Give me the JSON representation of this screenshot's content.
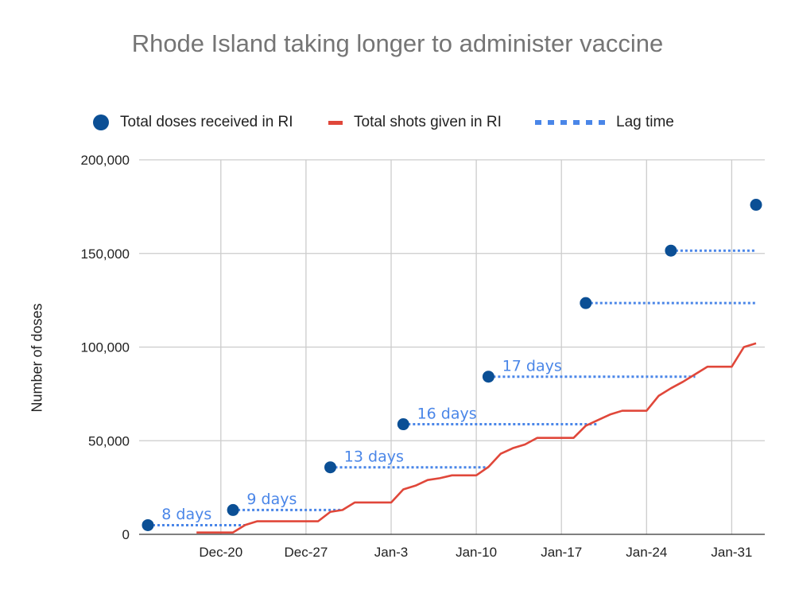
{
  "chart_data": {
    "type": "line",
    "title": "Rhode Island taking longer to administer vaccine",
    "xlabel": "",
    "ylabel": "Number of doses",
    "ylim": [
      0,
      200000
    ],
    "yticks": [
      0,
      50000,
      100000,
      150000,
      200000
    ],
    "ytick_labels": [
      "0",
      "50,000",
      "100,000",
      "150,000",
      "200,000"
    ],
    "xaxis_start_date": "2020-12-14",
    "xticks": [
      "2020-12-20",
      "2020-12-27",
      "2021-01-03",
      "2021-01-10",
      "2021-01-17",
      "2021-01-24",
      "2021-01-31"
    ],
    "xtick_labels": [
      "Dec-20",
      "Dec-27",
      "Jan-3",
      "Jan-10",
      "Jan-17",
      "Jan-24",
      "Jan-31"
    ],
    "grid": true,
    "legend_position": "top",
    "series": [
      {
        "name": "Total doses received in RI",
        "type": "scatter",
        "color": "#0b4f95",
        "x": [
          "2020-12-14",
          "2020-12-21",
          "2020-12-29",
          "2021-01-04",
          "2021-01-11",
          "2021-01-19",
          "2021-01-26",
          "2021-02-02"
        ],
        "y": [
          4900,
          13000,
          35800,
          58800,
          84200,
          123500,
          151500,
          176000
        ]
      },
      {
        "name": "Total shots given in RI",
        "type": "line",
        "color": "#e0473a",
        "x": [
          "2020-12-18",
          "2020-12-19",
          "2020-12-20",
          "2020-12-21",
          "2020-12-22",
          "2020-12-23",
          "2020-12-24",
          "2020-12-25",
          "2020-12-26",
          "2020-12-27",
          "2020-12-28",
          "2020-12-29",
          "2020-12-30",
          "2020-12-31",
          "2021-01-01",
          "2021-01-02",
          "2021-01-03",
          "2021-01-04",
          "2021-01-05",
          "2021-01-06",
          "2021-01-07",
          "2021-01-08",
          "2021-01-09",
          "2021-01-10",
          "2021-01-11",
          "2021-01-12",
          "2021-01-13",
          "2021-01-14",
          "2021-01-15",
          "2021-01-16",
          "2021-01-17",
          "2021-01-18",
          "2021-01-19",
          "2021-01-20",
          "2021-01-21",
          "2021-01-22",
          "2021-01-23",
          "2021-01-24",
          "2021-01-25",
          "2021-01-26",
          "2021-01-27",
          "2021-01-28",
          "2021-01-29",
          "2021-01-30",
          "2021-01-31",
          "2021-02-01",
          "2021-02-02"
        ],
        "y": [
          1000,
          1000,
          1000,
          1000,
          5000,
          7000,
          7000,
          7000,
          7000,
          7000,
          7000,
          12000,
          13000,
          17000,
          17000,
          17000,
          17000,
          24000,
          26000,
          29000,
          30000,
          31500,
          31500,
          31500,
          36000,
          43000,
          46000,
          48000,
          51500,
          51500,
          51500,
          51500,
          58000,
          61000,
          64000,
          66000,
          66000,
          66000,
          74000,
          78000,
          81500,
          85500,
          89500,
          89500,
          89500,
          100000,
          102000
        ]
      },
      {
        "name": "Lag time",
        "type": "dotted",
        "color": "#4a86e8",
        "segments": [
          {
            "x0": "2020-12-14",
            "x1": "2020-12-22",
            "y": 4900
          },
          {
            "x0": "2020-12-21",
            "x1": "2020-12-30",
            "y": 13000
          },
          {
            "x0": "2020-12-29",
            "x1": "2021-01-11",
            "y": 35800
          },
          {
            "x0": "2021-01-04",
            "x1": "2021-01-20",
            "y": 58800
          },
          {
            "x0": "2021-01-11",
            "x1": "2021-01-28",
            "y": 84200
          },
          {
            "x0": "2021-01-19",
            "x1": "2021-02-02",
            "y": 123500
          },
          {
            "x0": "2021-01-26",
            "x1": "2021-02-02",
            "y": 151500
          }
        ]
      }
    ],
    "annotations": [
      {
        "text": "8 days",
        "x": "2020-12-15",
        "y": 10600
      },
      {
        "text": "9 days",
        "x": "2020-12-22",
        "y": 18700
      },
      {
        "text": "13 days",
        "x": "2020-12-30",
        "y": 41400
      },
      {
        "text": "16 days",
        "x": "2021-01-05",
        "y": 64300
      },
      {
        "text": "17 days",
        "x": "2021-01-12",
        "y": 89900
      }
    ]
  }
}
